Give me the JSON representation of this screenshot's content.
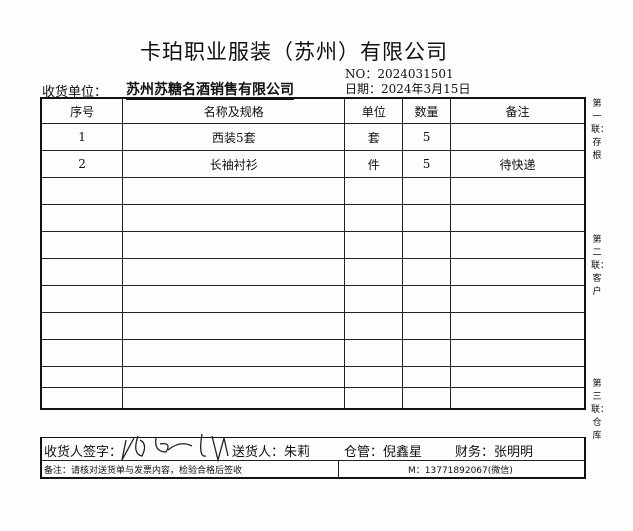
{
  "title": "卡珀职业服装（苏州）有限公司",
  "no": "NO：2024031501",
  "date": "日期：2024年3月15日",
  "receiver_label": "收货单位：",
  "receiver_value": "苏州苏糖名酒销售有限公司",
  "columns": [
    "序号",
    "名称及规格",
    "单位",
    "数量",
    "备注"
  ],
  "rows": [
    [
      "1",
      "西装5套",
      "套",
      "5",
      ""
    ],
    [
      "2",
      "长袖衬衫",
      "件",
      "5",
      "待快递"
    ],
    [
      "",
      "",
      "",
      "",
      ""
    ],
    [
      "",
      "",
      "",
      "",
      ""
    ],
    [
      "",
      "",
      "",
      "",
      ""
    ],
    [
      "",
      "",
      "",
      "",
      ""
    ],
    [
      "",
      "",
      "",
      "",
      ""
    ],
    [
      "",
      "",
      "",
      "",
      ""
    ],
    [
      "",
      "",
      "",
      "",
      ""
    ],
    [
      "",
      "",
      "",
      "",
      ""
    ],
    [
      "",
      "",
      "",
      "",
      ""
    ]
  ],
  "footer": {
    "signer_label": "收货人签字：",
    "courier": "送货人：朱莉",
    "warehouse": "仓管：倪鑫星",
    "finance": "财务：张明明",
    "note": "备注：请核对送货单与发票内容，检验合格后签收",
    "contact": "M：13771892067(微信)"
  },
  "side_labels": [
    "第一联：存根",
    "第二联：客户",
    "第三联：仓库"
  ]
}
